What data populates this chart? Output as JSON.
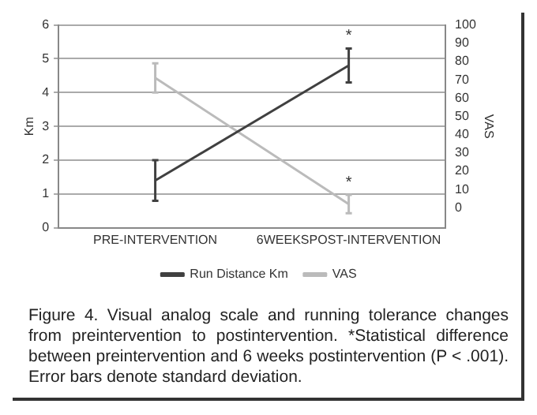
{
  "chart_data": {
    "type": "line",
    "xlabel": null,
    "ylabel": "Km",
    "y2label": "VAS",
    "categories": [
      "PRE-INTERVENTION",
      "6WEEKSPOST-INTERVENTION"
    ],
    "series": [
      {
        "name": "Run Distance Km",
        "color": "#404040",
        "values": [
          1.4,
          4.8
        ],
        "errors": [
          0.6,
          0.5
        ]
      },
      {
        "name": "VAS",
        "color": "#bbbbbb",
        "values": [
          71,
          2
        ],
        "errors": [
          8,
          5
        ],
        "axis": "y2"
      }
    ],
    "ylim": [
      0,
      6
    ],
    "yticks": [
      0,
      1,
      2,
      3,
      4,
      5,
      6
    ],
    "y2lim": [
      -11,
      100
    ],
    "y2ticks": [
      0,
      10,
      20,
      30,
      40,
      50,
      60,
      70,
      80,
      90,
      100
    ],
    "grid": "y",
    "legend": "bottom",
    "marker": "none",
    "annotations": [
      {
        "text": "*",
        "x": "6WEEKSPOST-INTERVENTION",
        "y": 4.8
      },
      {
        "text": "*",
        "x": "6WEEKSPOST-INTERVENTION",
        "y": 0.7
      },
      "Figure 4. Visual analog scale and running tolerance changes from preintervention to postintervention. *Statistical difference between preintervention and 6 weeks postintervention (P < .001). Error bars denote standard deviation."
    ]
  }
}
